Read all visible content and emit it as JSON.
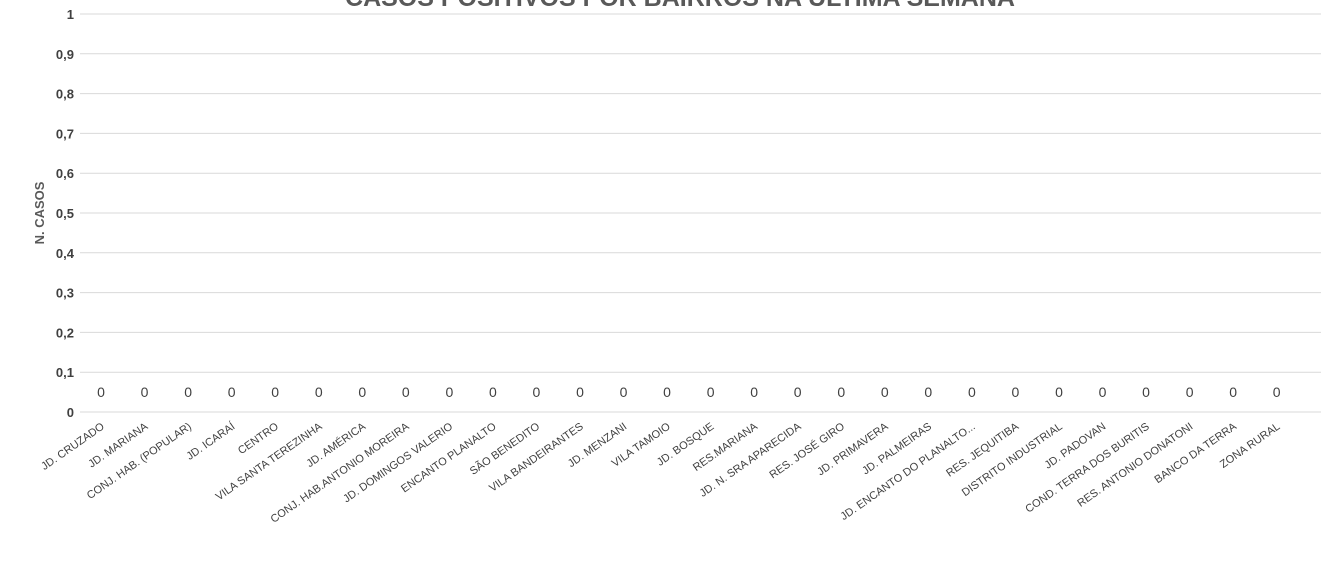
{
  "chart_data": {
    "type": "bar",
    "title": "CASOS POSITIVOS POR BAIRROS NA ÚLTIMA SEMANA",
    "xlabel": "",
    "ylabel": "N. CASOS",
    "ylim": [
      0,
      1
    ],
    "yticks": [
      "0",
      "0,1",
      "0,2",
      "0,3",
      "0,4",
      "0,5",
      "0,6",
      "0,7",
      "0,8",
      "0,9",
      "1"
    ],
    "grid": true,
    "legend": "none",
    "categories": [
      "JD. CRUZADO",
      "JD. MARIANA",
      "CONJ. HAB. (POPULAR)",
      "JD. ICARAÍ",
      "CENTRO",
      "VILA SANTA TEREZINHA",
      "JD. AMÉRICA",
      "CONJ. HAB.ANTONIO MOREIRA",
      "JD. DOMINGOS VALERIO",
      "ENCANTO PLANALTO",
      "SÃO BENEDITO",
      "VILA BANDEIRANTES",
      "JD. MENZANI",
      "VILA TAMOIO",
      "JD. BOSQUE",
      "RES.MARIANA",
      "JD. N. SRA APARECIDA",
      "RES. JOSÉ GIRO",
      "JD. PRIMAVERA",
      "JD. PALMEIRAS",
      "JD. ENCANTO DO PLANALTO...",
      "RES. JEQUITIBA",
      "DISTRITO INDUSTRIAL",
      "JD. PADOVAN",
      "COND. TERRA DOS BURITIS",
      "RES. ANTONIO DONATONI",
      "BANCO DA TERRA",
      "ZONA RURAL"
    ],
    "values": [
      0,
      0,
      0,
      0,
      0,
      0,
      0,
      0,
      0,
      0,
      0,
      0,
      0,
      0,
      0,
      0,
      0,
      0,
      0,
      0,
      0,
      0,
      0,
      0,
      0,
      0,
      0,
      0
    ],
    "data_labels": [
      "0",
      "0",
      "0",
      "0",
      "0",
      "0",
      "0",
      "0",
      "0",
      "0",
      "0",
      "0",
      "0",
      "0",
      "0",
      "0",
      "0",
      "0",
      "0",
      "0",
      "0",
      "0",
      "0",
      "0",
      "0",
      "0",
      "0",
      "0"
    ],
    "colors": {
      "grid": "#d9d9d9",
      "bar": "#4472c4",
      "text": "#404040",
      "title": "#595959"
    }
  }
}
